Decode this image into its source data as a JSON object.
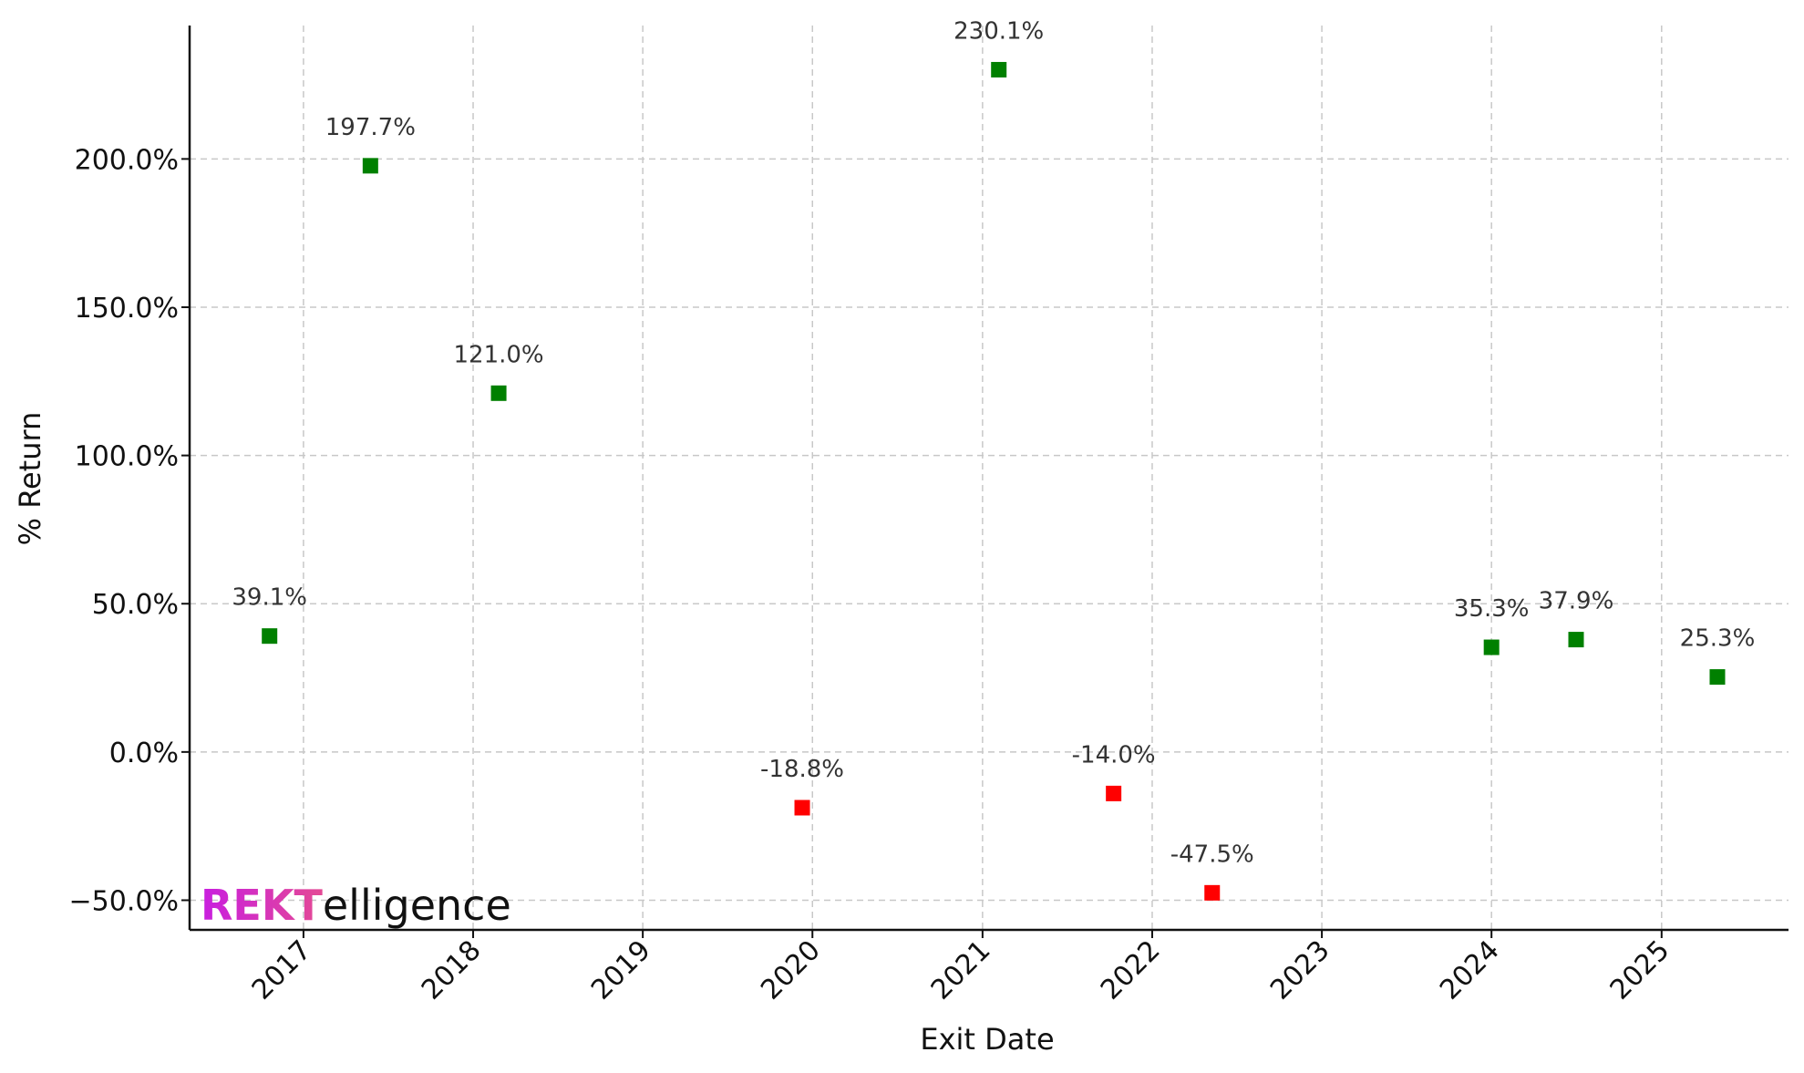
{
  "chart_data": {
    "type": "scatter",
    "xlabel": "Exit Date",
    "ylabel": "% Return",
    "xlim": [
      "2016-05-01",
      "2025-10-01"
    ],
    "ylim": [
      -60,
      245
    ],
    "x_ticks": [
      "2017",
      "2018",
      "2019",
      "2020",
      "2021",
      "2022",
      "2023",
      "2024",
      "2025"
    ],
    "y_ticks": [
      {
        "value": -50,
        "label": "−50.0%"
      },
      {
        "value": 0,
        "label": "0.0%"
      },
      {
        "value": 50,
        "label": "50.0%"
      },
      {
        "value": 100,
        "label": "100.0%"
      },
      {
        "value": 150,
        "label": "150.0%"
      },
      {
        "value": 200,
        "label": "200.0%"
      }
    ],
    "grid": true,
    "colors": {
      "gain": "#008000",
      "loss": "#ff0000"
    },
    "points": [
      {
        "date": "2016-10-20",
        "value": 39.1,
        "label": "39.1%"
      },
      {
        "date": "2017-05-25",
        "value": 197.7,
        "label": "197.7%"
      },
      {
        "date": "2018-02-25",
        "value": 121.0,
        "label": "121.0%"
      },
      {
        "date": "2019-12-10",
        "value": -18.8,
        "label": "-18.8%"
      },
      {
        "date": "2021-02-05",
        "value": 230.1,
        "label": "230.1%"
      },
      {
        "date": "2021-10-10",
        "value": -14.0,
        "label": "-14.0%"
      },
      {
        "date": "2022-05-10",
        "value": -47.5,
        "label": "-47.5%"
      },
      {
        "date": "2024-01-01",
        "value": 35.3,
        "label": "35.3%"
      },
      {
        "date": "2024-07-01",
        "value": 37.9,
        "label": "37.9%"
      },
      {
        "date": "2025-05-01",
        "value": 25.3,
        "label": "25.3%"
      }
    ]
  },
  "watermark": {
    "brand": "REKTelligence",
    "brand_part1": "REKT",
    "brand_part2": "elligence"
  }
}
